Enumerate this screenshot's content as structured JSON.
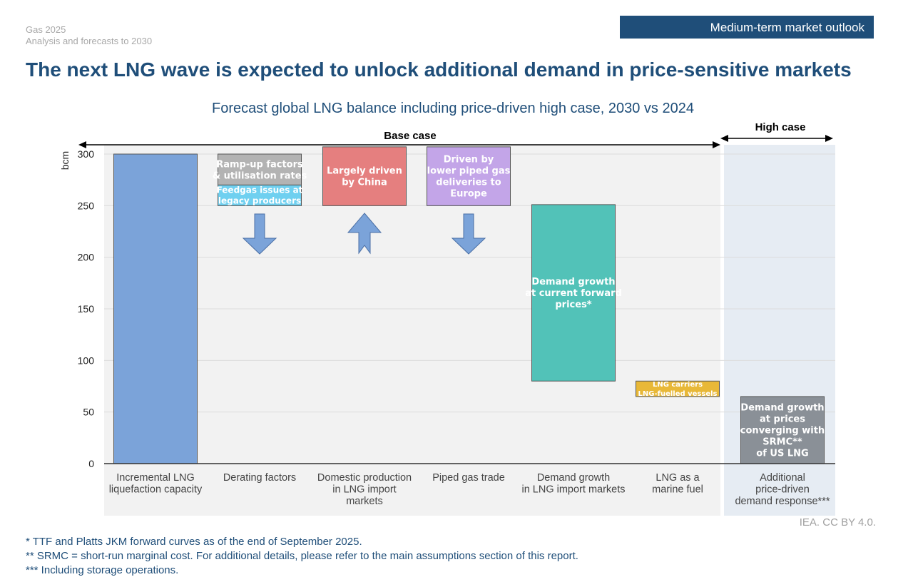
{
  "header": {
    "publication": "Gas 2025",
    "subtitle": "Analysis and forecasts to 2030",
    "badge": "Medium-term market outlook"
  },
  "title": "The next LNG wave is expected to unlock additional demand in price-sensitive markets",
  "chart_data": {
    "type": "bar",
    "subtype": "floating waterfall",
    "title": "Forecast global LNG balance including price-driven high case, 2030 vs 2024",
    "ylabel": "bcm",
    "ylim": [
      0,
      300
    ],
    "yticks": [
      0,
      50,
      100,
      150,
      200,
      250,
      300
    ],
    "grid": true,
    "categories": [
      [
        "Incremental LNG",
        "liquefaction capacity"
      ],
      [
        "Derating factors"
      ],
      [
        "Domestic production",
        "in LNG import",
        "markets"
      ],
      [
        "Piped gas trade"
      ],
      [
        "Demand growth",
        "in LNG import markets"
      ],
      [
        "LNG as a",
        "marine fuel"
      ],
      [
        "Additional",
        "price-driven",
        "demand response***"
      ]
    ],
    "segments": [
      {
        "category": 0,
        "low": 0,
        "high": 300,
        "color": "#7ba3d9",
        "label": ""
      },
      {
        "category": 1,
        "low": 270,
        "high": 300,
        "color": "#b3b3b3",
        "label": "Ramp-up factors\n& utilisation rates"
      },
      {
        "category": 1,
        "low": 250,
        "high": 270,
        "color": "#6fd0f0",
        "label": "Feedgas issues at\nlegacy producers"
      },
      {
        "category": 2,
        "low": 250,
        "high": 307,
        "color": "#e57f7f",
        "label": "Largely driven\nby China"
      },
      {
        "category": 3,
        "low": 250,
        "high": 307,
        "color": "#c3a5e8",
        "label": "Driven by\nlower piped gas\ndeliveries to\nEurope"
      },
      {
        "category": 4,
        "low": 80,
        "high": 251,
        "color": "#52c2b8",
        "label": "Demand growth\nat current forward\nprices*"
      },
      {
        "category": 5,
        "low": 65,
        "high": 80,
        "color": "#e8b838",
        "label": "LNG carriers\nLNG-fuelled vessels"
      },
      {
        "category": 6,
        "low": 0,
        "high": 65,
        "color": "#8a9097",
        "label": "Demand growth\nat prices\nconverging with\nSRMC**\nof US LNG"
      }
    ],
    "direction_arrows": [
      {
        "category": 1,
        "direction": "down"
      },
      {
        "category": 2,
        "direction": "up"
      },
      {
        "category": 3,
        "direction": "down"
      }
    ],
    "regions": [
      {
        "label": "Base case",
        "from": 0,
        "to": 5,
        "color": "#f2f2f2"
      },
      {
        "label": "High case",
        "from": 6,
        "to": 6,
        "color": "#e6ecf3"
      }
    ]
  },
  "notes": [
    "* TTF and Platts JKM forward curves as of the end of September 2025.",
    "** SRMC = short-run marginal cost. For additional details, please refer to the main assumptions section of this report.",
    "*** Including storage operations."
  ],
  "credit": "IEA. CC BY 4.0."
}
